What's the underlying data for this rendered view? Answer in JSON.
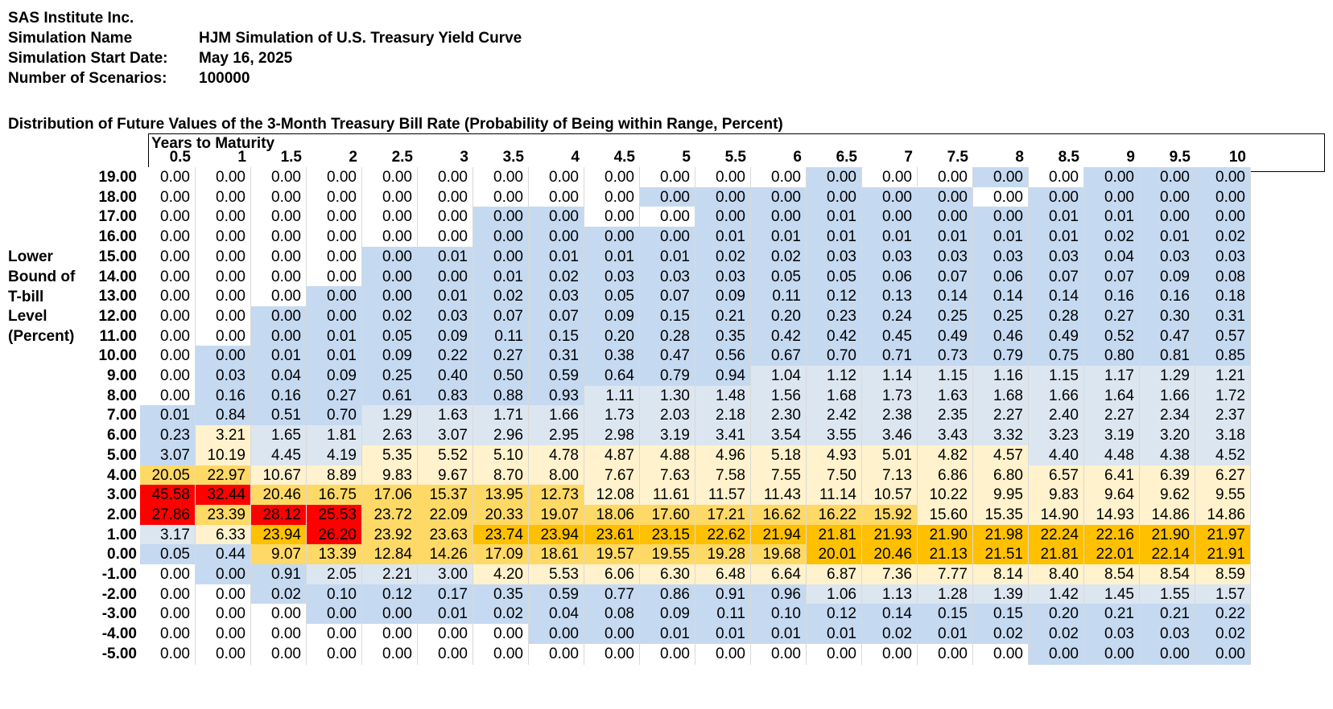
{
  "header": {
    "company": "SAS Institute Inc.",
    "sim_name_label": "Simulation Name",
    "sim_name_value": "HJM Simulation of U.S. Treasury Yield Curve",
    "start_label": "Simulation Start Date:",
    "start_value": "May 16, 2025",
    "scenarios_label": "Number of Scenarios:",
    "scenarios_value": "100000"
  },
  "table_title": "Distribution of Future Values of the 3-Month Treasury Bill Rate (Probability of Being within Range, Percent)",
  "column_group_label": "Years to Maturity",
  "row_axis_label": [
    "Lower",
    "Bound of",
    "T-bill",
    "Level",
    "(Percent)"
  ],
  "colors": {
    "white": "#ffffff",
    "blue": "#c5d9f1",
    "lightblue": "#dce6f1",
    "cream": "#fff2cc",
    "yellow": "#ffd966",
    "orange": "#ffc000",
    "red": "#ff0000"
  },
  "columns": [
    "0.5",
    "1",
    "1.5",
    "2",
    "2.5",
    "3",
    "3.5",
    "4",
    "4.5",
    "5",
    "5.5",
    "6",
    "6.5",
    "7",
    "7.5",
    "8",
    "8.5",
    "9",
    "9.5",
    "10"
  ],
  "rows": [
    {
      "label": "19.00",
      "values": [
        "0.00",
        "0.00",
        "0.00",
        "0.00",
        "0.00",
        "0.00",
        "0.00",
        "0.00",
        "0.00",
        "0.00",
        "0.00",
        "0.00",
        "0.00",
        "0.00",
        "0.00",
        "0.00",
        "0.00",
        "0.00",
        "0.00",
        "0.00"
      ]
    },
    {
      "label": "18.00",
      "values": [
        "0.00",
        "0.00",
        "0.00",
        "0.00",
        "0.00",
        "0.00",
        "0.00",
        "0.00",
        "0.00",
        "0.00",
        "0.00",
        "0.00",
        "0.00",
        "0.00",
        "0.00",
        "0.00",
        "0.00",
        "0.00",
        "0.00",
        "0.00"
      ]
    },
    {
      "label": "17.00",
      "values": [
        "0.00",
        "0.00",
        "0.00",
        "0.00",
        "0.00",
        "0.00",
        "0.00",
        "0.00",
        "0.00",
        "0.00",
        "0.00",
        "0.00",
        "0.01",
        "0.00",
        "0.00",
        "0.00",
        "0.01",
        "0.01",
        "0.00",
        "0.00"
      ]
    },
    {
      "label": "16.00",
      "values": [
        "0.00",
        "0.00",
        "0.00",
        "0.00",
        "0.00",
        "0.00",
        "0.00",
        "0.00",
        "0.00",
        "0.00",
        "0.01",
        "0.01",
        "0.01",
        "0.01",
        "0.01",
        "0.01",
        "0.01",
        "0.02",
        "0.01",
        "0.02"
      ]
    },
    {
      "label": "15.00",
      "values": [
        "0.00",
        "0.00",
        "0.00",
        "0.00",
        "0.00",
        "0.01",
        "0.00",
        "0.01",
        "0.01",
        "0.01",
        "0.02",
        "0.02",
        "0.03",
        "0.03",
        "0.03",
        "0.03",
        "0.03",
        "0.04",
        "0.03",
        "0.03"
      ]
    },
    {
      "label": "14.00",
      "values": [
        "0.00",
        "0.00",
        "0.00",
        "0.00",
        "0.00",
        "0.00",
        "0.01",
        "0.02",
        "0.03",
        "0.03",
        "0.03",
        "0.05",
        "0.05",
        "0.06",
        "0.07",
        "0.06",
        "0.07",
        "0.07",
        "0.09",
        "0.08"
      ]
    },
    {
      "label": "13.00",
      "values": [
        "0.00",
        "0.00",
        "0.00",
        "0.00",
        "0.00",
        "0.01",
        "0.02",
        "0.03",
        "0.05",
        "0.07",
        "0.09",
        "0.11",
        "0.12",
        "0.13",
        "0.14",
        "0.14",
        "0.14",
        "0.16",
        "0.16",
        "0.18"
      ]
    },
    {
      "label": "12.00",
      "values": [
        "0.00",
        "0.00",
        "0.00",
        "0.00",
        "0.02",
        "0.03",
        "0.07",
        "0.07",
        "0.09",
        "0.15",
        "0.21",
        "0.20",
        "0.23",
        "0.24",
        "0.25",
        "0.25",
        "0.28",
        "0.27",
        "0.30",
        "0.31"
      ]
    },
    {
      "label": "11.00",
      "values": [
        "0.00",
        "0.00",
        "0.00",
        "0.01",
        "0.05",
        "0.09",
        "0.11",
        "0.15",
        "0.20",
        "0.28",
        "0.35",
        "0.42",
        "0.42",
        "0.45",
        "0.49",
        "0.46",
        "0.49",
        "0.52",
        "0.47",
        "0.57"
      ]
    },
    {
      "label": "10.00",
      "values": [
        "0.00",
        "0.00",
        "0.01",
        "0.01",
        "0.09",
        "0.22",
        "0.27",
        "0.31",
        "0.38",
        "0.47",
        "0.56",
        "0.67",
        "0.70",
        "0.71",
        "0.73",
        "0.79",
        "0.75",
        "0.80",
        "0.81",
        "0.85"
      ]
    },
    {
      "label": "9.00",
      "values": [
        "0.00",
        "0.03",
        "0.04",
        "0.09",
        "0.25",
        "0.40",
        "0.50",
        "0.59",
        "0.64",
        "0.79",
        "0.94",
        "1.04",
        "1.12",
        "1.14",
        "1.15",
        "1.16",
        "1.15",
        "1.17",
        "1.29",
        "1.21"
      ]
    },
    {
      "label": "8.00",
      "values": [
        "0.00",
        "0.16",
        "0.16",
        "0.27",
        "0.61",
        "0.83",
        "0.88",
        "0.93",
        "1.11",
        "1.30",
        "1.48",
        "1.56",
        "1.68",
        "1.73",
        "1.63",
        "1.68",
        "1.66",
        "1.64",
        "1.66",
        "1.72"
      ]
    },
    {
      "label": "7.00",
      "values": [
        "0.01",
        "0.84",
        "0.51",
        "0.70",
        "1.29",
        "1.63",
        "1.71",
        "1.66",
        "1.73",
        "2.03",
        "2.18",
        "2.30",
        "2.42",
        "2.38",
        "2.35",
        "2.27",
        "2.40",
        "2.27",
        "2.34",
        "2.37"
      ]
    },
    {
      "label": "6.00",
      "values": [
        "0.23",
        "3.21",
        "1.65",
        "1.81",
        "2.63",
        "3.07",
        "2.96",
        "2.95",
        "2.98",
        "3.19",
        "3.41",
        "3.54",
        "3.55",
        "3.46",
        "3.43",
        "3.32",
        "3.23",
        "3.19",
        "3.20",
        "3.18"
      ]
    },
    {
      "label": "5.00",
      "values": [
        "3.07",
        "10.19",
        "4.45",
        "4.19",
        "5.35",
        "5.52",
        "5.10",
        "4.78",
        "4.87",
        "4.88",
        "4.96",
        "5.18",
        "4.93",
        "5.01",
        "4.82",
        "4.57",
        "4.40",
        "4.48",
        "4.38",
        "4.52"
      ]
    },
    {
      "label": "4.00",
      "values": [
        "20.05",
        "22.97",
        "10.67",
        "8.89",
        "9.83",
        "9.67",
        "8.70",
        "8.00",
        "7.67",
        "7.63",
        "7.58",
        "7.55",
        "7.50",
        "7.13",
        "6.86",
        "6.80",
        "6.57",
        "6.41",
        "6.39",
        "6.27"
      ]
    },
    {
      "label": "3.00",
      "values": [
        "45.58",
        "32.44",
        "20.46",
        "16.75",
        "17.06",
        "15.37",
        "13.95",
        "12.73",
        "12.08",
        "11.61",
        "11.57",
        "11.43",
        "11.14",
        "10.57",
        "10.22",
        "9.95",
        "9.83",
        "9.64",
        "9.62",
        "9.55"
      ]
    },
    {
      "label": "2.00",
      "values": [
        "27.86",
        "23.39",
        "28.12",
        "25.53",
        "23.72",
        "22.09",
        "20.33",
        "19.07",
        "18.06",
        "17.60",
        "17.21",
        "16.62",
        "16.22",
        "15.92",
        "15.60",
        "15.35",
        "14.90",
        "14.93",
        "14.86",
        "14.86"
      ]
    },
    {
      "label": "1.00",
      "values": [
        "3.17",
        "6.33",
        "23.94",
        "26.20",
        "23.92",
        "23.63",
        "23.74",
        "23.94",
        "23.61",
        "23.15",
        "22.62",
        "21.94",
        "21.81",
        "21.93",
        "21.90",
        "21.98",
        "22.24",
        "22.16",
        "21.90",
        "21.97"
      ]
    },
    {
      "label": "0.00",
      "values": [
        "0.05",
        "0.44",
        "9.07",
        "13.39",
        "12.84",
        "14.26",
        "17.09",
        "18.61",
        "19.57",
        "19.55",
        "19.28",
        "19.68",
        "20.01",
        "20.46",
        "21.13",
        "21.51",
        "21.81",
        "22.01",
        "22.14",
        "21.91"
      ]
    },
    {
      "label": "-1.00",
      "values": [
        "0.00",
        "0.00",
        "0.91",
        "2.05",
        "2.21",
        "3.00",
        "4.20",
        "5.53",
        "6.06",
        "6.30",
        "6.48",
        "6.64",
        "6.87",
        "7.36",
        "7.77",
        "8.14",
        "8.40",
        "8.54",
        "8.54",
        "8.59"
      ]
    },
    {
      "label": "-2.00",
      "values": [
        "0.00",
        "0.00",
        "0.02",
        "0.10",
        "0.12",
        "0.17",
        "0.35",
        "0.59",
        "0.77",
        "0.86",
        "0.91",
        "0.96",
        "1.06",
        "1.13",
        "1.28",
        "1.39",
        "1.42",
        "1.45",
        "1.55",
        "1.57"
      ]
    },
    {
      "label": "-3.00",
      "values": [
        "0.00",
        "0.00",
        "0.00",
        "0.00",
        "0.00",
        "0.01",
        "0.02",
        "0.04",
        "0.08",
        "0.09",
        "0.11",
        "0.10",
        "0.12",
        "0.14",
        "0.15",
        "0.15",
        "0.20",
        "0.21",
        "0.21",
        "0.22"
      ]
    },
    {
      "label": "-4.00",
      "values": [
        "0.00",
        "0.00",
        "0.00",
        "0.00",
        "0.00",
        "0.00",
        "0.00",
        "0.00",
        "0.00",
        "0.01",
        "0.01",
        "0.01",
        "0.01",
        "0.02",
        "0.01",
        "0.02",
        "0.02",
        "0.03",
        "0.03",
        "0.02"
      ]
    },
    {
      "label": "-5.00",
      "values": [
        "0.00",
        "0.00",
        "0.00",
        "0.00",
        "0.00",
        "0.00",
        "0.00",
        "0.00",
        "0.00",
        "0.00",
        "0.00",
        "0.00",
        "0.00",
        "0.00",
        "0.00",
        "0.00",
        "0.00",
        "0.00",
        "0.00",
        "0.00"
      ]
    }
  ],
  "fills": [
    "WWWWWWWWWWWWBWWBWBBB",
    "WWWWWWWWWBBBBBBWBBBB",
    "WWWWWWBBWWBBBBBBBBBB",
    "WWWWWWBBBBBBBBBBBBBB",
    "WWWWBBBBBBBBBBBBBBBB",
    "WWWWBBBBBBBBBBBBBBBB",
    "WWWBBBBBBBBBBBBBBBBB",
    "WWBBBBBBBBBBBBBBBBBB",
    "WWBBBBBBBBBBBBBBBBBB",
    "WBBBBBBBBBBBBBBBBBBB",
    "WBBBBBBBBBBLLLLLLLLL",
    "WBBBBBBBLLLLLLLLLLLL",
    "BBBBLLLLLLLLLLLLLLLL",
    "BCLLLLLLLLLLLLLLLLLL",
    "BCLLCCCCCCCCCCCCLLLL",
    "YYCCCCCCCCCCCCCCCCCC",
    "RRYYYYYYCCCCCCCCCCCC",
    "RYRRYYYYYYYYYYCCCCCC",
    "LCORYYOOOOOOOOOOOOOO",
    "BBYYYYYYYYYYOOOOOOOO",
    "WBBLLLCCCCCCCCCCCCCC",
    "WWBBBBBBBBBBLLLLLLLL",
    "WWWBBBBBBBBBBBBBBBBB",
    "WWWWWWWBBBBBBBBBBBBB",
    "WWWWWWWWWWWWWWWWBBBB"
  ]
}
